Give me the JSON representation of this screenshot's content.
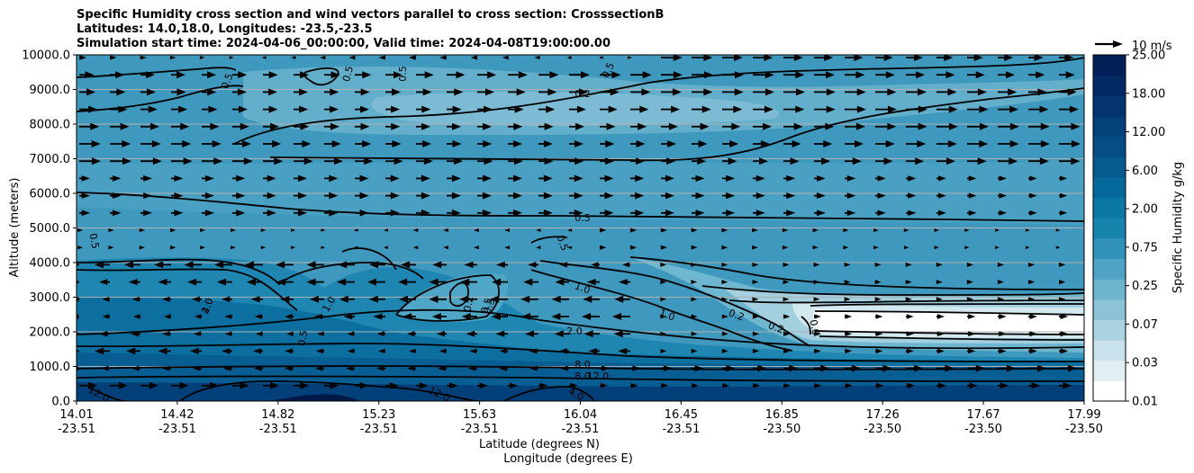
{
  "title": {
    "line1": "Specific Humidity cross section and wind vectors parallel to cross section: CrosssectionB",
    "line2": "Latitudes: 14.0,18.0, Longitudes: -23.5,-23.5",
    "line3": "Simulation start time: 2024-04-06_00:00:00, Valid time: 2024-04-08T19:00:00.00"
  },
  "axes": {
    "ylabel": "Altitude (meters)",
    "xlabel_lat": "Latitude (degrees N)",
    "xlabel_lon": "Longitude (degrees E)",
    "y_ticks": [
      "0.0",
      "1000.0",
      "2000.0",
      "3000.0",
      "4000.0",
      "5000.0",
      "6000.0",
      "7000.0",
      "8000.0",
      "9000.0",
      "10000.0"
    ],
    "x_ticks_lat": [
      "14.01",
      "14.42",
      "14.82",
      "15.23",
      "15.63",
      "16.04",
      "16.45",
      "16.85",
      "17.26",
      "17.67",
      "17.99"
    ],
    "x_ticks_lon": [
      "-23.51",
      "-23.51",
      "-23.51",
      "-23.51",
      "-23.51",
      "-23.51",
      "-23.51",
      "-23.50",
      "-23.50",
      "-23.50",
      "-23.50"
    ]
  },
  "colorbar": {
    "label": "Specific Humidity g/kg",
    "ticks": [
      "0.01",
      "0.03",
      "0.07",
      "0.25",
      "0.75",
      "2.00",
      "6.00",
      "12.00",
      "18.00",
      "25.00"
    ],
    "colors": [
      "#ffffff",
      "#e2eef2",
      "#c8e1ea",
      "#abd2e0",
      "#8cc3d7",
      "#6db3cc",
      "#4fa2c4",
      "#3292b9",
      "#1784ae",
      "#0a77a5",
      "#05699b",
      "#055b90",
      "#054e85",
      "#04407a",
      "#033470",
      "#032864",
      "#021f58"
    ]
  },
  "quiver_key": {
    "label": "10 m/s"
  },
  "contour_labels": [
    "0.5",
    "0.5",
    "0.5",
    "0.5",
    "0.2",
    "0.5",
    "0.5",
    "0.5",
    "0.5",
    "1.0",
    "1.0",
    "0.2",
    "0.2",
    "0.0",
    "2.0",
    "4.0",
    "8.0",
    "8.0",
    "12.0",
    "12.0",
    "12.0",
    "4.0",
    "2.0",
    "1.0",
    "0.2",
    "0.5",
    "0.5"
  ],
  "chart_data": {
    "type": "heatmap",
    "title": "Specific Humidity cross section and wind vectors parallel to cross section: CrosssectionB",
    "xlabel": "Latitude (degrees N) / Longitude (degrees E)",
    "ylabel": "Altitude (meters)",
    "xlim": [
      14.01,
      17.99
    ],
    "ylim": [
      0,
      10000
    ],
    "colorbar_label": "Specific Humidity g/kg",
    "colorbar_levels": [
      0.01,
      0.03,
      0.07,
      0.25,
      0.75,
      2.0,
      6.0,
      12.0,
      18.0,
      25.0
    ],
    "grid": "horizontal",
    "humidity_profile": {
      "altitude_m": [
        0,
        500,
        1000,
        2000,
        3000,
        4000,
        5000,
        6000,
        7000,
        8000,
        9000,
        10000
      ],
      "approx_g_per_kg_west": [
        14.0,
        12.0,
        8.0,
        4.0,
        2.5,
        1.0,
        0.5,
        0.5,
        0.4,
        0.3,
        0.4,
        0.5
      ],
      "approx_g_per_kg_east": [
        12.0,
        10.0,
        8.0,
        0.01,
        0.05,
        0.7,
        0.5,
        0.5,
        0.3,
        0.2,
        0.3,
        0.5
      ]
    },
    "wind_vectors": "eastward (positive) above ~4000 m, westward (negative) in 1500-4000 m layer on west side",
    "quiver_key_ms": 10
  }
}
